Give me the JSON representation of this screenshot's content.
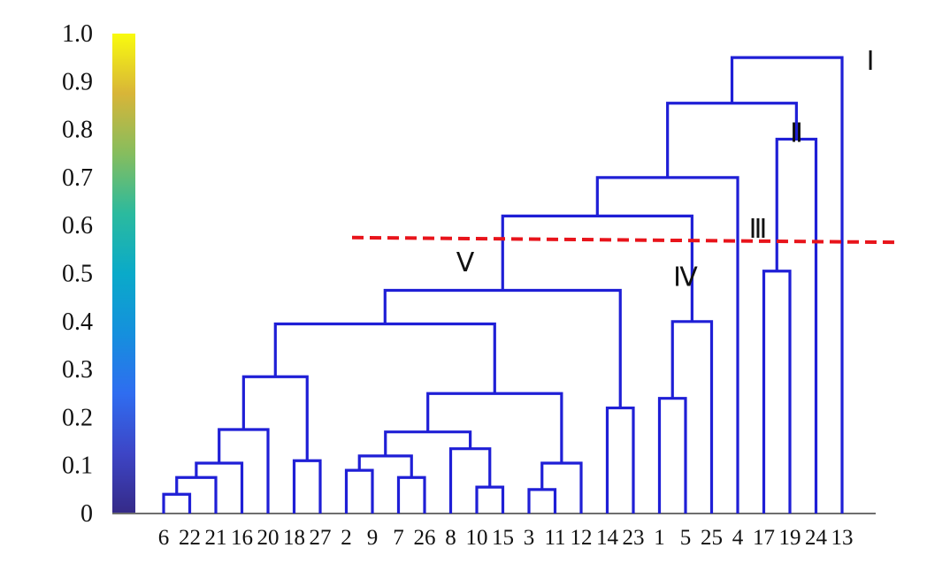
{
  "chart_data": {
    "type": "dendrogram",
    "ylim": [
      0,
      1.0
    ],
    "y_ticks": [
      "0",
      "0.1",
      "0.2",
      "0.3",
      "0.4",
      "0.5",
      "0.6",
      "0.7",
      "0.8",
      "0.9",
      "1.0"
    ],
    "leaves": [
      "6",
      "22",
      "21",
      "16",
      "20",
      "18",
      "27",
      "2",
      "9",
      "7",
      "26",
      "8",
      "10",
      "15",
      "3",
      "11",
      "12",
      "14",
      "23",
      "1",
      "5",
      "25",
      "4",
      "17",
      "19",
      "24",
      "13"
    ],
    "merges": [
      {
        "left": "6",
        "right": "22",
        "height": 0.04
      },
      {
        "left": "3",
        "right": "11",
        "height": 0.05
      },
      {
        "left": "10",
        "right": "15",
        "height": 0.055
      },
      {
        "left": "7",
        "right": "26",
        "height": 0.075
      },
      {
        "left": "[6,22]",
        "right": "21",
        "height": 0.075
      },
      {
        "left": "2",
        "right": "9",
        "height": 0.09
      },
      {
        "left": "[6,22,21]",
        "right": "16",
        "height": 0.105
      },
      {
        "left": "[3,11]",
        "right": "12",
        "height": 0.105
      },
      {
        "left": "18",
        "right": "27",
        "height": 0.11
      },
      {
        "left": "[2,9]",
        "right": "[7,26]",
        "height": 0.12
      },
      {
        "left": "8",
        "right": "[10,15]",
        "height": 0.135
      },
      {
        "left": "[2,9,7,26]",
        "right": "[8,10,15]",
        "height": 0.17
      },
      {
        "left": "[6,22,21,16]",
        "right": "20",
        "height": 0.175
      },
      {
        "left": "14",
        "right": "23",
        "height": 0.22
      },
      {
        "left": "1",
        "right": "5",
        "height": 0.24
      },
      {
        "left": "[2,9,7,26,8,10,15]",
        "right": "[3,11,12]",
        "height": 0.25
      },
      {
        "left": "[6,22,21,16,20]",
        "right": "[18,27]",
        "height": 0.285
      },
      {
        "left": "[6..27]",
        "right": "[2..12]",
        "height": 0.395
      },
      {
        "left": "[1,5]",
        "right": "25",
        "height": 0.4
      },
      {
        "left": "[6..12]",
        "right": "[14,23]",
        "height": 0.465
      },
      {
        "left": "17",
        "right": "19",
        "height": 0.505
      },
      {
        "left": "[6..23]",
        "right": "[1,5,25]",
        "height": 0.62
      },
      {
        "left": "[6..25]",
        "right": "4",
        "height": 0.7
      },
      {
        "left": "[17,19]",
        "right": "24",
        "height": 0.78
      },
      {
        "left": "[6..4]",
        "right": "[17,19,24]",
        "height": 0.855
      },
      {
        "left": "[6..24]",
        "right": "13",
        "height": 0.95
      }
    ],
    "cut_line": {
      "y_start": 0.575,
      "y_end": 0.565,
      "color": "#e8141b",
      "style": "dashed"
    },
    "cluster_labels": [
      {
        "text": "Ⅰ",
        "anchor_leaf": "13",
        "height": 0.95
      },
      {
        "text": "Ⅱ",
        "anchor_leaf": "24",
        "height": 0.8
      },
      {
        "text": "Ⅲ",
        "anchor_leaf": "4",
        "height": 0.6
      },
      {
        "text": "Ⅳ",
        "anchor_leaf": "5",
        "height": 0.5
      },
      {
        "text": "Ⅴ",
        "anchor_leaf": "23",
        "height": 0.53
      }
    ],
    "colorbar": {
      "colormap": "parula",
      "range": [
        0,
        1.0
      ]
    },
    "line_color": "#1f1fd6",
    "grid": false
  }
}
